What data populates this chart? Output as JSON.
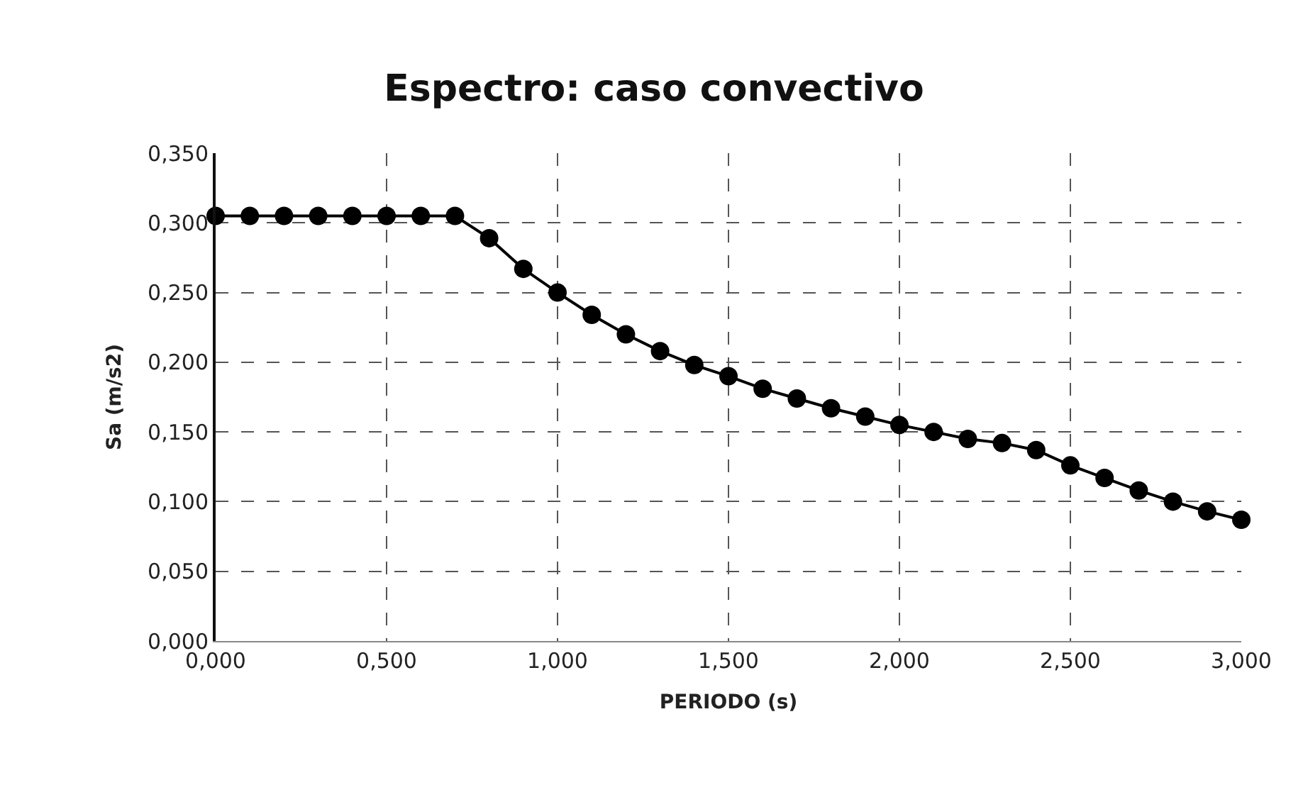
{
  "chart_data": {
    "type": "line",
    "title": "Espectro: caso convectivo",
    "xlabel": "PERIODO (s)",
    "ylabel": "Sa (m/s2)",
    "x": [
      0,
      0.1,
      0.2,
      0.3,
      0.4,
      0.5,
      0.6,
      0.7,
      0.8,
      0.9,
      1.0,
      1.1,
      1.2,
      1.3,
      1.4,
      1.5,
      1.6,
      1.7,
      1.8,
      1.9,
      2.0,
      2.1,
      2.2,
      2.3,
      2.4,
      2.5,
      2.6,
      2.7,
      2.8,
      2.9,
      3.0
    ],
    "series": [
      {
        "color": "#000000",
        "values": [
          0.305,
          0.305,
          0.305,
          0.305,
          0.305,
          0.305,
          0.305,
          0.305,
          0.289,
          0.267,
          0.25,
          0.234,
          0.22,
          0.208,
          0.198,
          0.19,
          0.181,
          0.174,
          0.167,
          0.161,
          0.155,
          0.15,
          0.145,
          0.142,
          0.137,
          0.126,
          0.117,
          0.108,
          0.1,
          0.093,
          0.087
        ]
      }
    ],
    "xlim": [
      0,
      3.0
    ],
    "ylim": [
      0,
      0.35
    ],
    "xticks": [
      {
        "value": 0,
        "label": "0,000"
      },
      {
        "value": 0.5,
        "label": "0,500"
      },
      {
        "value": 1.0,
        "label": "1,000"
      },
      {
        "value": 1.5,
        "label": "1,500"
      },
      {
        "value": 2.0,
        "label": "2,000"
      },
      {
        "value": 2.5,
        "label": "2,500"
      },
      {
        "value": 3.0,
        "label": "3,000"
      }
    ],
    "yticks": [
      {
        "value": 0,
        "label": "0,000"
      },
      {
        "value": 0.05,
        "label": "0,050"
      },
      {
        "value": 0.1,
        "label": "0,100"
      },
      {
        "value": 0.15,
        "label": "0,150"
      },
      {
        "value": 0.2,
        "label": "0,200"
      },
      {
        "value": 0.25,
        "label": "0,250"
      },
      {
        "value": 0.3,
        "label": "0,300"
      },
      {
        "value": 0.35,
        "label": "0,350"
      }
    ],
    "grid": true,
    "legend": false,
    "marker": "circle",
    "line_style": "solid"
  }
}
